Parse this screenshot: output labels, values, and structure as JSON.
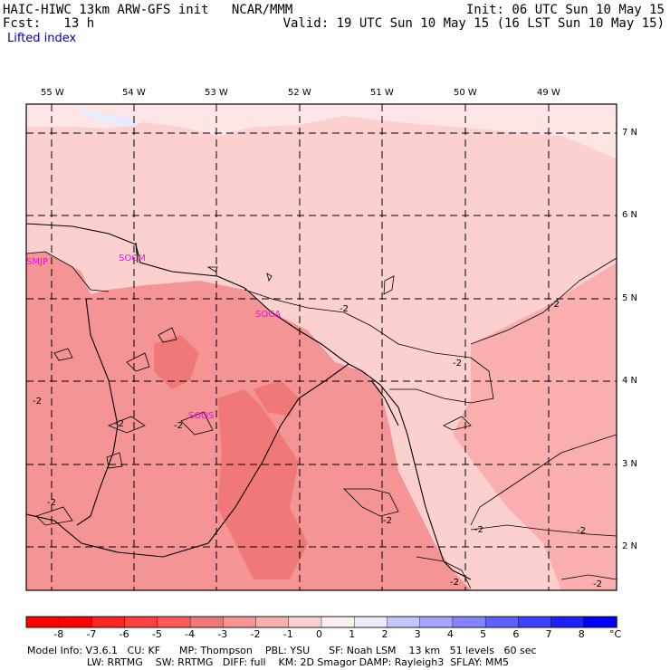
{
  "header": {
    "line1_left": "HAIC-HIWC 13km ARW-GFS init   NCAR/MMM",
    "line1_right": "Init: 06 UTC Sun 10 May 15",
    "line2_left": "Fcst:   13 h",
    "line2_right": "Valid: 19 UTC Sun 10 May 15 (16 LST Sun 10 May 15)",
    "field": "Lifted index"
  },
  "map": {
    "lon_labels": [
      "55 W",
      "54 W",
      "53 W",
      "52 W",
      "51 W",
      "50 W",
      "49 W"
    ],
    "lat_labels": [
      "7 N",
      "6 N",
      "5 N",
      "4 N",
      "3 N",
      "2 N"
    ],
    "stations": [
      "SMJP",
      "SOCM",
      "SOCA",
      "SOOS"
    ],
    "contour_labels": [
      "-2",
      "-2",
      "-2",
      "-2",
      "-2",
      "-2",
      "-2",
      "-2",
      "-2",
      "-2",
      "-2",
      "-2"
    ]
  },
  "colorbar": {
    "ticks": [
      "-8",
      "-7",
      "-6",
      "-5",
      "-4",
      "-3",
      "-2",
      "-1",
      "0",
      "1",
      "2",
      "3",
      "4",
      "5",
      "6",
      "7",
      "8"
    ],
    "unit": "°C",
    "colors": [
      "#ff0000",
      "#ff2525",
      "#ff4040",
      "#ff5a5a",
      "#f07878",
      "#f59494",
      "#fbb0b0",
      "#fdd0d0",
      "#fff0f0",
      "#ececff",
      "#c6c6ff",
      "#a5a5ff",
      "#8484ff",
      "#6060ff",
      "#4040ff",
      "#2020ff",
      "#0000ff"
    ]
  },
  "footer": {
    "line1": "Model Info: V3.6.1   CU: KF      MP: Thompson    PBL: YSU      SF: Noah LSM    13 km   51 levels   60 sec",
    "line2": "LW: RRTMG    SW: RRTMG   DIFF: full    KM: 2D Smagor DAMP: Rayleigh3  SFLAY: MM5"
  }
}
